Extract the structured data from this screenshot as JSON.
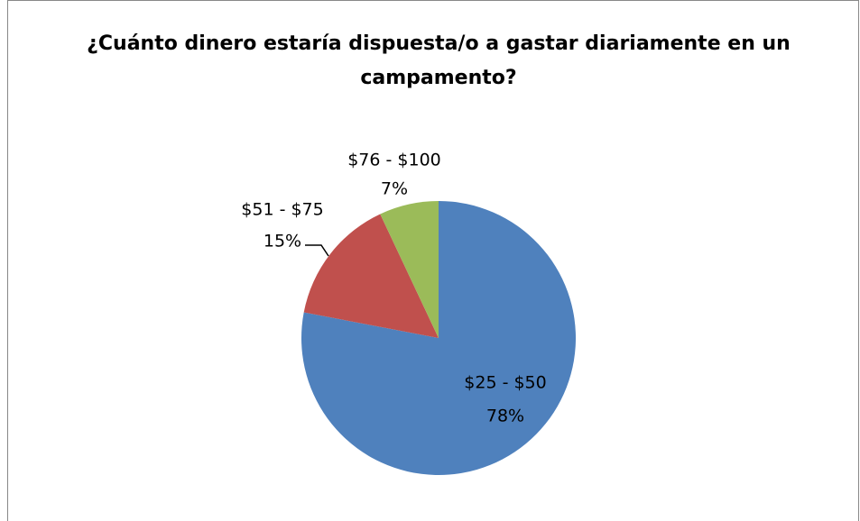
{
  "chart_data": {
    "type": "pie",
    "title": "¿Cuánto dinero estaría dispuesta/o a gastar diariamente en un campamento?",
    "categories": [
      "$25 - $50",
      "$51 - $75",
      "$76 - $100"
    ],
    "values": [
      78,
      15,
      7
    ],
    "value_labels": [
      "78%",
      "15%",
      "7%"
    ],
    "colors": [
      "#4f81bd",
      "#c0504d",
      "#9bbb59"
    ]
  }
}
